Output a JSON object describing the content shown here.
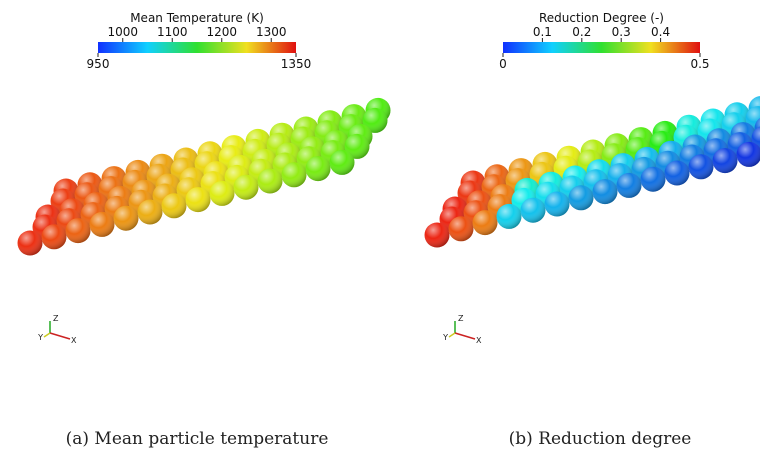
{
  "panels": [
    {
      "colorbar": {
        "title": "Mean Temperature (K)",
        "min": 950,
        "max": 1350,
        "ticks": [
          1000,
          1100,
          1200,
          1300
        ]
      },
      "axes": {
        "z": "Z",
        "y": "Y",
        "x": "X"
      },
      "caption": "(a) Mean particle temperature"
    },
    {
      "colorbar": {
        "title": "Reduction Degree (-)",
        "min": 0,
        "max": 0.5,
        "ticks": [
          0.1,
          0.2,
          0.3,
          0.4
        ]
      },
      "axes": {
        "z": "Z",
        "y": "Y",
        "x": "X"
      },
      "caption": "(b) Reduction degree"
    }
  ]
}
